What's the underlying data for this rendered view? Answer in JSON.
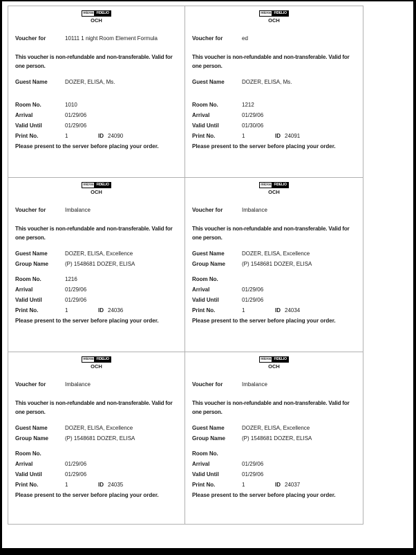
{
  "brand": {
    "logo_left": "micros",
    "logo_right": "FIDELIO",
    "property_code": "OCH"
  },
  "labels": {
    "voucher_for": "Voucher for",
    "disclaimer_line1": "This voucher is non-refundable and non-transferable.  Valid for",
    "disclaimer_line2": "one person.",
    "guest_name": "Guest Name",
    "group_name": "Group Name",
    "room_no": "Room No.",
    "arrival": "Arrival",
    "valid_until": "Valid Until",
    "print_no": "Print No.",
    "id": "ID",
    "footer": "Please present to the server before placing your order."
  },
  "vouchers": [
    {
      "voucher_for": "10111 1 night Room Element Formula",
      "guest_name": "DOZER, ELISA, Ms.",
      "group_name": "",
      "room_no": "1010",
      "arrival": "01/29/06",
      "valid_until": "01/29/06",
      "print_no": "1",
      "id": "24090"
    },
    {
      "voucher_for": "ed",
      "guest_name": "DOZER, ELISA, Ms.",
      "group_name": "",
      "room_no": "1212",
      "arrival": "01/29/06",
      "valid_until": "01/30/06",
      "print_no": "1",
      "id": "24091"
    },
    {
      "voucher_for": "Imbalance",
      "guest_name": "DOZER, ELISA, Excellence",
      "group_name": "(P) 1548681 DOZER, ELISA",
      "room_no": "1216",
      "arrival": "01/29/06",
      "valid_until": "01/29/06",
      "print_no": "1",
      "id": "24036"
    },
    {
      "voucher_for": "Imbalance",
      "guest_name": "DOZER, ELISA, Excellence",
      "group_name": "(P) 1548681 DOZER, ELISA",
      "room_no": "",
      "arrival": "01/29/06",
      "valid_until": "01/29/06",
      "print_no": "1",
      "id": "24034"
    },
    {
      "voucher_for": "Imbalance",
      "guest_name": "DOZER, ELISA, Excellence",
      "group_name": "(P) 1548681 DOZER, ELISA",
      "room_no": "",
      "arrival": "01/29/06",
      "valid_until": "01/29/06",
      "print_no": "1",
      "id": "24035"
    },
    {
      "voucher_for": "Imbalance",
      "guest_name": "DOZER, ELISA, Excellence",
      "group_name": "(P) 1548681 DOZER, ELISA",
      "room_no": "",
      "arrival": "01/29/06",
      "valid_until": "01/29/06",
      "print_no": "1",
      "id": "24037"
    }
  ]
}
